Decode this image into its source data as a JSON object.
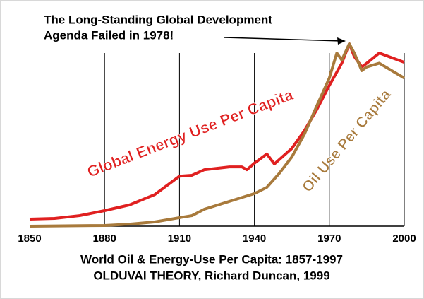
{
  "chart_data": {
    "type": "line",
    "annotation": [
      "The Long-Standing Global Development",
      "Agenda Failed in 1978!"
    ],
    "caption": [
      "World Oil & Energy-Use Per Capita: 1857-1997",
      "OLDUVAI THEORY, Richard Duncan, 1999"
    ],
    "xlim": [
      1850,
      2000
    ],
    "xticks": [
      1850,
      1880,
      1910,
      1940,
      1970,
      2000
    ],
    "ylim": [
      0,
      100
    ],
    "grid": true,
    "series": [
      {
        "name": "Global Energy Use Per Capita",
        "color": "#e02020",
        "x": [
          1850,
          1860,
          1870,
          1880,
          1890,
          1900,
          1905,
          1910,
          1915,
          1920,
          1930,
          1935,
          1937,
          1940,
          1945,
          1948,
          1950,
          1955,
          1960,
          1965,
          1970,
          1975,
          1978,
          1980,
          1983,
          1985,
          1990,
          1995,
          2000
        ],
        "values": [
          3.8,
          4.2,
          5.7,
          8.4,
          11.5,
          17,
          22,
          27,
          27.5,
          30.5,
          32,
          32,
          30.5,
          34,
          39,
          33.6,
          36,
          42,
          51.5,
          63,
          76,
          88,
          98.5,
          91.6,
          86,
          88,
          93.5,
          91,
          88.5
        ]
      },
      {
        "name": "Oil Use Per Capita",
        "color": "#a87a3c",
        "x": [
          1850,
          1880,
          1890,
          1900,
          1910,
          1915,
          1920,
          1930,
          1940,
          1945,
          1950,
          1955,
          1960,
          1965,
          1970,
          1973,
          1975,
          1978,
          1980,
          1983,
          1985,
          1990,
          1995,
          2000
        ],
        "values": [
          0,
          0.4,
          1.1,
          2.3,
          4.6,
          5.7,
          9.2,
          13.4,
          17.6,
          21,
          28.6,
          37.4,
          49.6,
          65,
          80,
          93.5,
          89.7,
          98.5,
          93.5,
          84,
          86,
          88,
          84,
          80
        ]
      }
    ]
  }
}
